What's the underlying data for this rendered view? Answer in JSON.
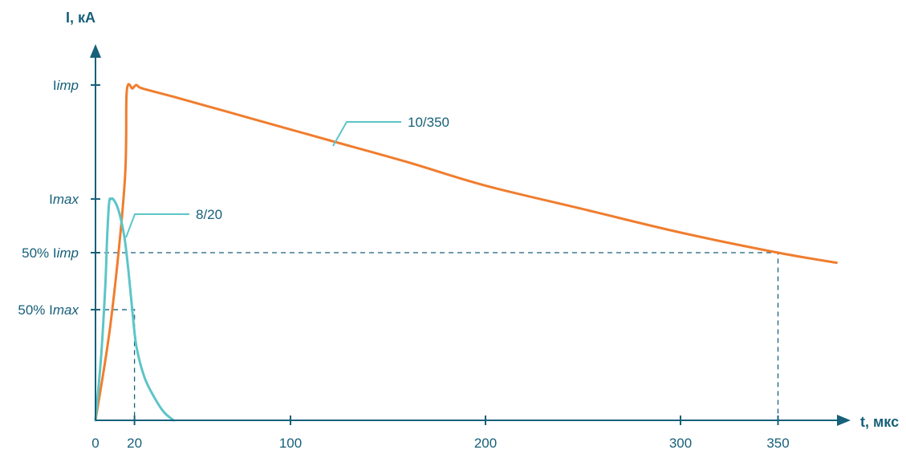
{
  "chart_data": {
    "type": "line",
    "title": "",
    "xlabel": "t, мкс",
    "ylabel": "I, кА",
    "xlim": [
      0,
      383
    ],
    "ylim": [
      0,
      1.0
    ],
    "x_ticks": [
      {
        "value": 0,
        "label": "0"
      },
      {
        "value": 20,
        "label": "20"
      },
      {
        "value": 100,
        "label": "100"
      },
      {
        "value": 200,
        "label": "200"
      },
      {
        "value": 300,
        "label": "300"
      },
      {
        "value": 350,
        "label": "350"
      }
    ],
    "y_levels": [
      {
        "key": "imp",
        "value": 1.0,
        "label_pre": "I",
        "label_it": "imp"
      },
      {
        "key": "max",
        "value": 0.66,
        "label_pre": "I",
        "label_it": "max"
      },
      {
        "key": "half_imp",
        "value": 0.5,
        "label_pre": "50% I",
        "label_it": "imp"
      },
      {
        "key": "half_max",
        "value": 0.33,
        "label_pre": "50% I",
        "label_it": "max"
      }
    ],
    "reference_lines": [
      {
        "from": "half_imp",
        "x": 350
      },
      {
        "from": "half_max",
        "x": 20
      }
    ],
    "series": [
      {
        "name": "10/350",
        "color": "#f07d2e",
        "x": [
          0,
          8,
          15,
          16,
          19,
          21,
          24,
          40,
          80,
          120,
          160,
          200,
          250,
          300,
          350,
          380
        ],
        "y": [
          0,
          0.3,
          0.71,
          0.98,
          0.99,
          1.0,
          0.99,
          0.965,
          0.9,
          0.835,
          0.77,
          0.7,
          0.63,
          0.56,
          0.5,
          0.47
        ]
      },
      {
        "name": "8/20",
        "color": "#5cc5c8",
        "x": [
          0,
          3,
          5,
          6,
          7,
          8,
          9,
          11,
          13,
          15,
          17,
          19,
          21,
          25,
          30,
          35,
          40
        ],
        "y": [
          0,
          0.2,
          0.4,
          0.55,
          0.65,
          0.66,
          0.66,
          0.64,
          0.6,
          0.54,
          0.44,
          0.32,
          0.22,
          0.13,
          0.07,
          0.025,
          0.0
        ]
      }
    ]
  }
}
